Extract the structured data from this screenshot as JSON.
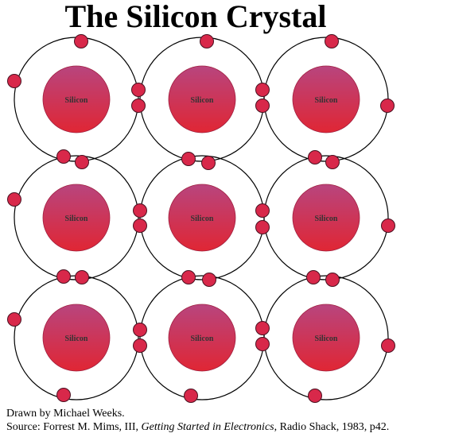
{
  "header": {
    "title": "The Silicon Crystal"
  },
  "nodes": [
    {
      "label": "Silicon"
    },
    {
      "label": "Silicon"
    },
    {
      "label": "Silicon"
    },
    {
      "label": "Silicon"
    },
    {
      "label": "Silicon"
    },
    {
      "label": "Silicon"
    },
    {
      "label": "Silicon"
    },
    {
      "label": "Silicon"
    },
    {
      "label": "Silicon"
    }
  ],
  "credits": {
    "drawn_by": "Drawn by Michael Weeks.",
    "source_prefix": "Source: Forrest M. Mims, III, ",
    "source_title": "Getting Started in Electronics",
    "source_suffix": ", Radio Shack, 1983, p42."
  }
}
